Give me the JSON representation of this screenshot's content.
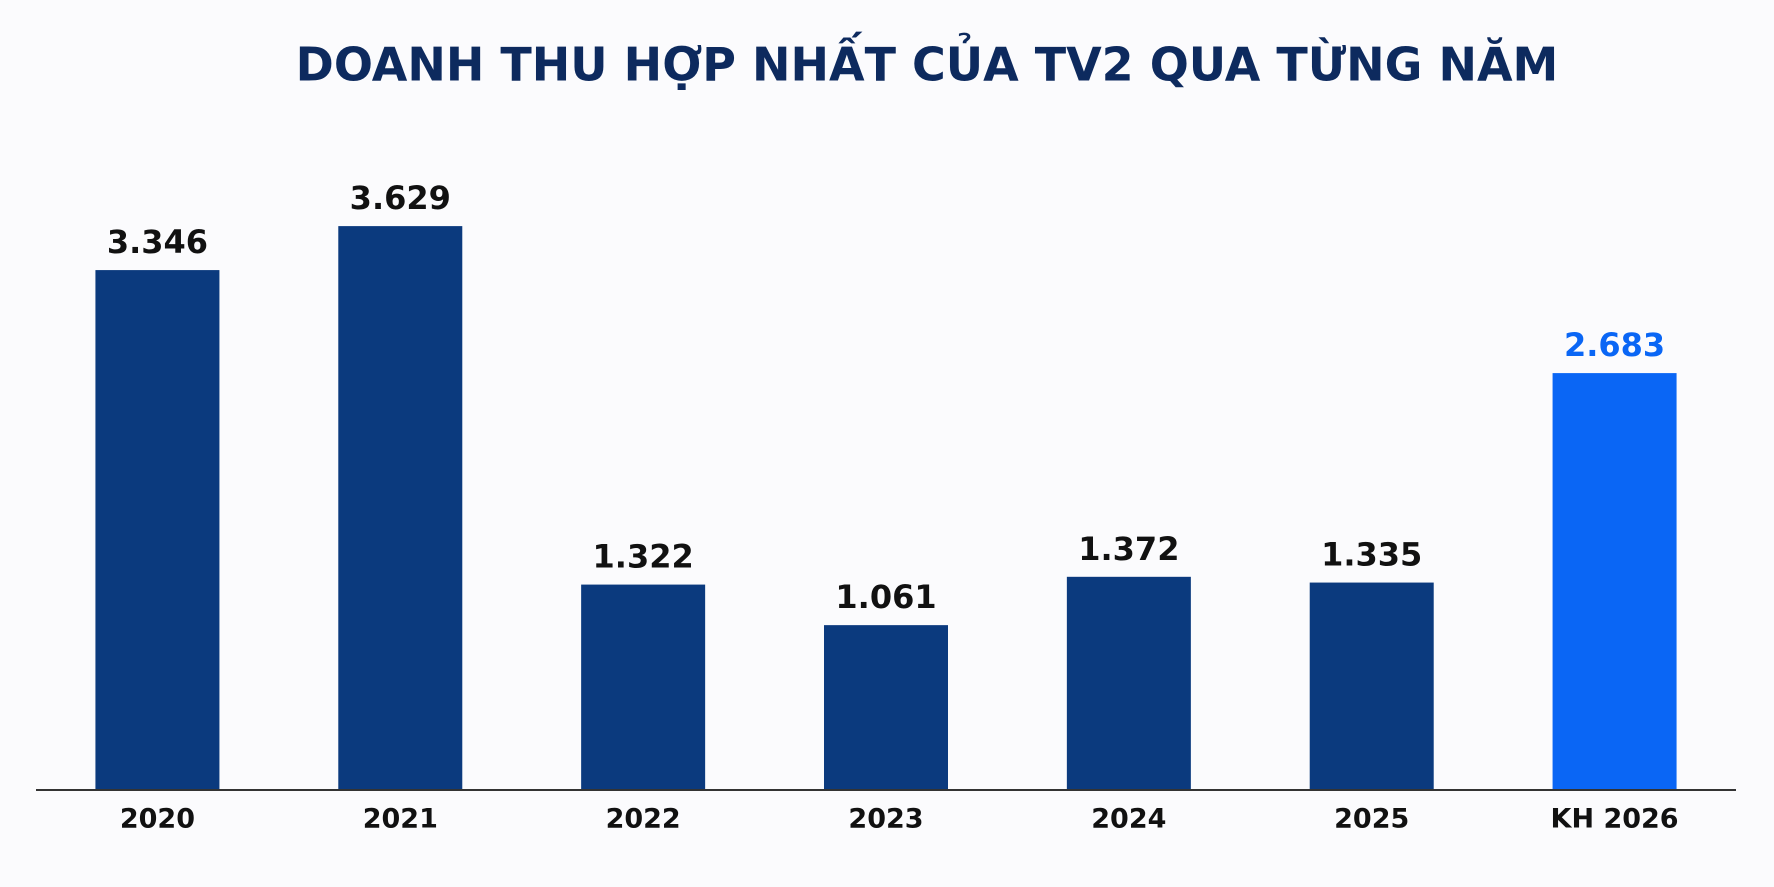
{
  "chart_data": {
    "type": "bar",
    "title": "DOANH THU HỢP NHẤT CỦA TV2 QUA TỪNG NĂM",
    "categories": [
      "2020",
      "2021",
      "2022",
      "2023",
      "2024",
      "2025",
      "KH 2026"
    ],
    "values": [
      3346,
      3629,
      1322,
      1061,
      1372,
      1335,
      2683
    ],
    "value_labels": [
      "3.346",
      "3.629",
      "1.322",
      "1.061",
      "1.372",
      "1.335",
      "2.683"
    ],
    "colors": [
      "#0b3a7e",
      "#0b3a7e",
      "#0b3a7e",
      "#0b3a7e",
      "#0b3a7e",
      "#0b3a7e",
      "#0a66f5"
    ],
    "value_label_colors": [
      "#111111",
      "#111111",
      "#111111",
      "#111111",
      "#111111",
      "#111111",
      "#0a66f5"
    ],
    "ylim": [
      0,
      3900
    ]
  }
}
